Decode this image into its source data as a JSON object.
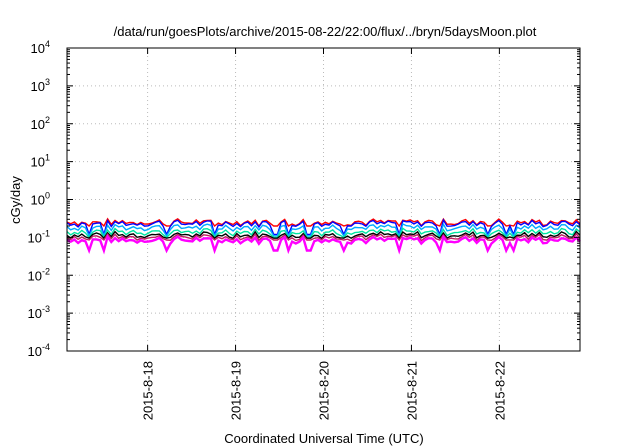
{
  "chart_data": {
    "type": "line",
    "title": "/data/run/goesPlots/archive/2015-08-22/22:00/flux/../bryn/5daysMoon.plot",
    "xlabel": "Coordinated Universal Time (UTC)",
    "ylabel": "cGy/day",
    "yscale": "log",
    "ylim": [
      0.0001,
      10000
    ],
    "y_ticks": [
      {
        "base": "10",
        "exp": "-4",
        "value": 0.0001
      },
      {
        "base": "10",
        "exp": "-3",
        "value": 0.001
      },
      {
        "base": "10",
        "exp": "-2",
        "value": 0.01
      },
      {
        "base": "10",
        "exp": "-1",
        "value": 0.1
      },
      {
        "base": "10",
        "exp": "0",
        "value": 1
      },
      {
        "base": "10",
        "exp": "1",
        "value": 10
      },
      {
        "base": "10",
        "exp": "2",
        "value": 100
      },
      {
        "base": "10",
        "exp": "3",
        "value": 1000
      },
      {
        "base": "10",
        "exp": "4",
        "value": 10000
      }
    ],
    "xlim": [
      "2015-08-17T02:00",
      "2015-08-22T22:00"
    ],
    "x_ticks": [
      {
        "label": "2015-8-18",
        "time": "2015-08-18T00:00"
      },
      {
        "label": "2015-8-19",
        "time": "2015-08-19T00:00"
      },
      {
        "label": "2015-8-20",
        "time": "2015-08-20T00:00"
      },
      {
        "label": "2015-8-21",
        "time": "2015-08-21T00:00"
      },
      {
        "label": "2015-8-22",
        "time": "2015-08-22T00:00"
      }
    ],
    "grid": true,
    "legend": "none",
    "series": [
      {
        "color": "#ff0000",
        "base": 0.26,
        "min_dip": 0.2
      },
      {
        "color": "#0000ff",
        "base": 0.24,
        "min_dip": 0.12
      },
      {
        "color": "#00aaff",
        "base": 0.19,
        "min_dip": 0.11
      },
      {
        "color": "#00e5a0",
        "base": 0.145,
        "min_dip": 0.1
      },
      {
        "color": "#000000",
        "base": 0.12,
        "min_dip": 0.095
      },
      {
        "color": "#bf2060",
        "base": 0.105,
        "min_dip": 0.085
      },
      {
        "color": "#ff00ff",
        "base": 0.088,
        "min_dip": 0.045
      }
    ]
  }
}
